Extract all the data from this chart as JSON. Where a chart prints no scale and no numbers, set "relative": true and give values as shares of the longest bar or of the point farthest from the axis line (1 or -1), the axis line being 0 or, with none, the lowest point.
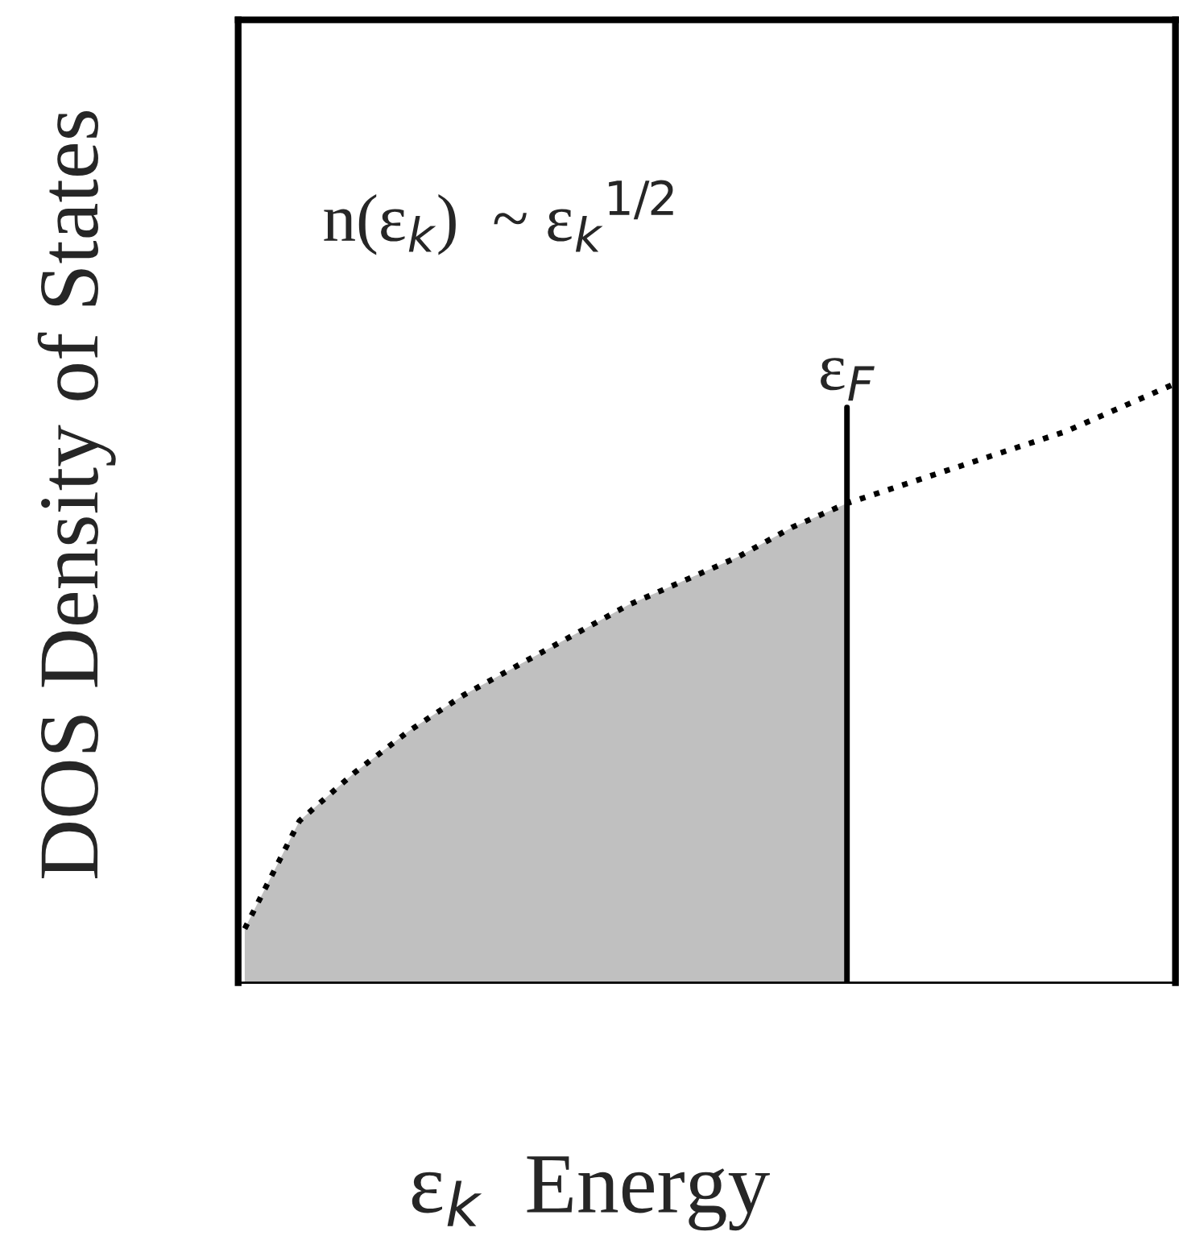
{
  "chart_data": {
    "type": "line",
    "relative": true,
    "xlabel": "ε$_{k}$  Energy",
    "ylabel": "DOS Density of States",
    "categories": [
      null,
      null,
      null,
      null,
      null,
      null,
      null,
      null,
      null,
      null,
      null,
      null,
      null,
      null,
      null,
      null,
      null,
      null
    ],
    "series": [
      {
        "type": "area",
        "name": "ε$_{F}$",
        "color": "#c0c0c0",
        "values": [
          0.09,
          0.27,
          0.35,
          0.42,
          0.48,
          0.53,
          0.58,
          0.63,
          0.67,
          0.71,
          0.76,
          0.8,
          null,
          null,
          null,
          null,
          null,
          null
        ]
      },
      {
        "color": "#000000",
        "line_style": "dotted",
        "values": [
          0.09,
          0.27,
          0.35,
          0.42,
          0.48,
          0.53,
          0.58,
          0.63,
          0.67,
          0.71,
          0.76,
          0.8,
          0.83,
          0.86,
          0.89,
          0.92,
          0.96,
          1.0
        ]
      }
    ],
    "annotations": [
      "n(ε$_{k}$)  ~ ε$_{k}$$^{1/2}$"
    ]
  }
}
